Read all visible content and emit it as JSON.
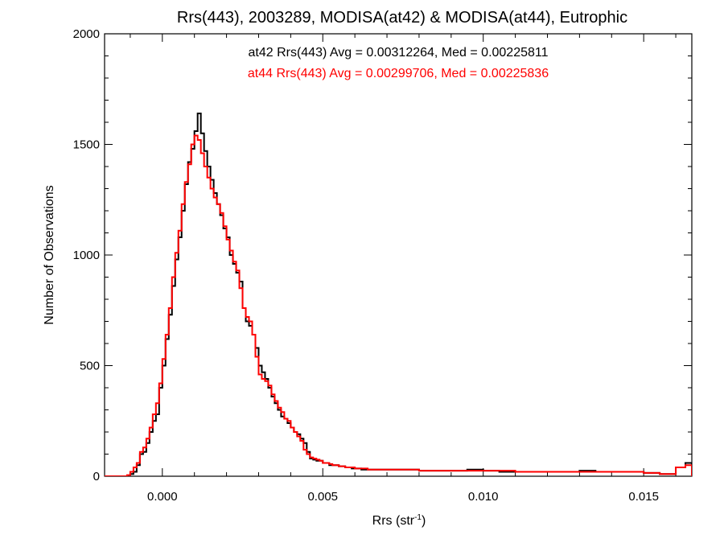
{
  "chart_data": {
    "type": "line",
    "style": "histogram-step",
    "title": "Rrs(443), 2003289, MODISA(at42) & MODISA(at44), Eutrophic",
    "xlabel": "Rrs (str",
    "xlabel_sup": "-1",
    "xlabel_close": ")",
    "ylabel": "Number of Observations",
    "xlim": [
      -0.0018,
      0.0165
    ],
    "ylim": [
      0,
      2000
    ],
    "x_ticks": [
      0.0,
      0.005,
      0.01,
      0.015
    ],
    "x_tick_labels": [
      "0.000",
      "0.005",
      "0.010",
      "0.015"
    ],
    "y_ticks": [
      0,
      500,
      1000,
      1500,
      2000
    ],
    "y_tick_labels": [
      "0",
      "500",
      "1000",
      "1500",
      "2000"
    ],
    "annotations": [
      {
        "text": "at42 Rrs(443) Avg = 0.00312264, Med = 0.00225811",
        "color": "#000000"
      },
      {
        "text": "at44 Rrs(443) Avg = 0.00299706, Med = 0.00225836",
        "color": "#ff0000"
      }
    ],
    "series": [
      {
        "color": "#000000",
        "x": [
          -0.0018,
          -0.0011,
          -0.001,
          -0.0009,
          -0.0008,
          -0.0007,
          -0.0006,
          -0.0005,
          -0.0004,
          -0.0003,
          -0.0002,
          -0.0001,
          0.0,
          0.0001,
          0.0002,
          0.0003,
          0.0004,
          0.0005,
          0.0006,
          0.0007,
          0.0008,
          0.0009,
          0.001,
          0.0011,
          0.0012,
          0.0013,
          0.0014,
          0.0015,
          0.0016,
          0.0017,
          0.0018,
          0.0019,
          0.002,
          0.0021,
          0.0022,
          0.0023,
          0.0024,
          0.0025,
          0.0026,
          0.0027,
          0.0028,
          0.0029,
          0.003,
          0.0031,
          0.0032,
          0.0033,
          0.0034,
          0.0035,
          0.0036,
          0.0037,
          0.0038,
          0.0039,
          0.004,
          0.0041,
          0.0042,
          0.0043,
          0.0044,
          0.0045,
          0.0046,
          0.0047,
          0.0048,
          0.0049,
          0.005,
          0.0051,
          0.0052,
          0.0053,
          0.0054,
          0.0055,
          0.0056,
          0.0057,
          0.0058,
          0.0059,
          0.006,
          0.0062,
          0.0064,
          0.0066,
          0.0068,
          0.007,
          0.0075,
          0.008,
          0.0085,
          0.009,
          0.0095,
          0.01,
          0.0105,
          0.011,
          0.0115,
          0.012,
          0.0125,
          0.013,
          0.0135,
          0.014,
          0.0145,
          0.015,
          0.0155,
          0.016,
          0.0163,
          0.0165
        ],
        "y": [
          0,
          0,
          10,
          20,
          50,
          100,
          110,
          150,
          200,
          250,
          280,
          400,
          500,
          620,
          730,
          860,
          980,
          1080,
          1200,
          1320,
          1420,
          1480,
          1560,
          1640,
          1550,
          1470,
          1400,
          1340,
          1280,
          1230,
          1180,
          1120,
          1080,
          1000,
          960,
          920,
          880,
          760,
          700,
          680,
          640,
          580,
          500,
          470,
          440,
          400,
          360,
          330,
          300,
          270,
          260,
          240,
          220,
          200,
          190,
          170,
          150,
          110,
          80,
          75,
          70,
          70,
          60,
          60,
          50,
          50,
          50,
          45,
          45,
          40,
          40,
          35,
          35,
          30,
          30,
          30,
          30,
          30,
          30,
          25,
          25,
          25,
          30,
          25,
          20,
          20,
          20,
          20,
          20,
          25,
          20,
          20,
          20,
          15,
          10,
          40,
          60,
          0
        ]
      },
      {
        "color": "#ff0000",
        "x": [
          -0.0018,
          -0.0011,
          -0.001,
          -0.0009,
          -0.0008,
          -0.0007,
          -0.0006,
          -0.0005,
          -0.0004,
          -0.0003,
          -0.0002,
          -0.0001,
          0.0,
          0.0001,
          0.0002,
          0.0003,
          0.0004,
          0.0005,
          0.0006,
          0.0007,
          0.0008,
          0.0009,
          0.001,
          0.0011,
          0.0012,
          0.0013,
          0.0014,
          0.0015,
          0.0016,
          0.0017,
          0.0018,
          0.0019,
          0.002,
          0.0021,
          0.0022,
          0.0023,
          0.0024,
          0.0025,
          0.0026,
          0.0027,
          0.0028,
          0.0029,
          0.003,
          0.0031,
          0.0032,
          0.0033,
          0.0034,
          0.0035,
          0.0036,
          0.0037,
          0.0038,
          0.0039,
          0.004,
          0.0041,
          0.0042,
          0.0043,
          0.0044,
          0.0045,
          0.0046,
          0.0047,
          0.0048,
          0.0049,
          0.005,
          0.0051,
          0.0052,
          0.0053,
          0.0054,
          0.0055,
          0.0056,
          0.0057,
          0.0058,
          0.0059,
          0.006,
          0.0062,
          0.0064,
          0.0066,
          0.0068,
          0.007,
          0.0075,
          0.008,
          0.0085,
          0.009,
          0.0095,
          0.01,
          0.0105,
          0.011,
          0.0115,
          0.012,
          0.0125,
          0.013,
          0.0135,
          0.014,
          0.0145,
          0.015,
          0.0155,
          0.016,
          0.0163,
          0.0165
        ],
        "y": [
          0,
          5,
          20,
          40,
          60,
          110,
          130,
          170,
          220,
          280,
          330,
          420,
          530,
          640,
          760,
          900,
          1010,
          1110,
          1230,
          1330,
          1410,
          1500,
          1540,
          1520,
          1460,
          1400,
          1350,
          1300,
          1260,
          1230,
          1190,
          1130,
          1070,
          1020,
          970,
          930,
          850,
          760,
          720,
          700,
          640,
          540,
          460,
          440,
          430,
          410,
          370,
          340,
          310,
          290,
          260,
          250,
          220,
          200,
          180,
          160,
          120,
          100,
          85,
          80,
          75,
          70,
          60,
          60,
          55,
          50,
          50,
          45,
          45,
          40,
          40,
          40,
          35,
          35,
          30,
          30,
          30,
          30,
          30,
          25,
          25,
          25,
          25,
          25,
          25,
          20,
          20,
          20,
          20,
          20,
          20,
          20,
          20,
          15,
          10,
          40,
          50,
          0
        ]
      }
    ]
  }
}
